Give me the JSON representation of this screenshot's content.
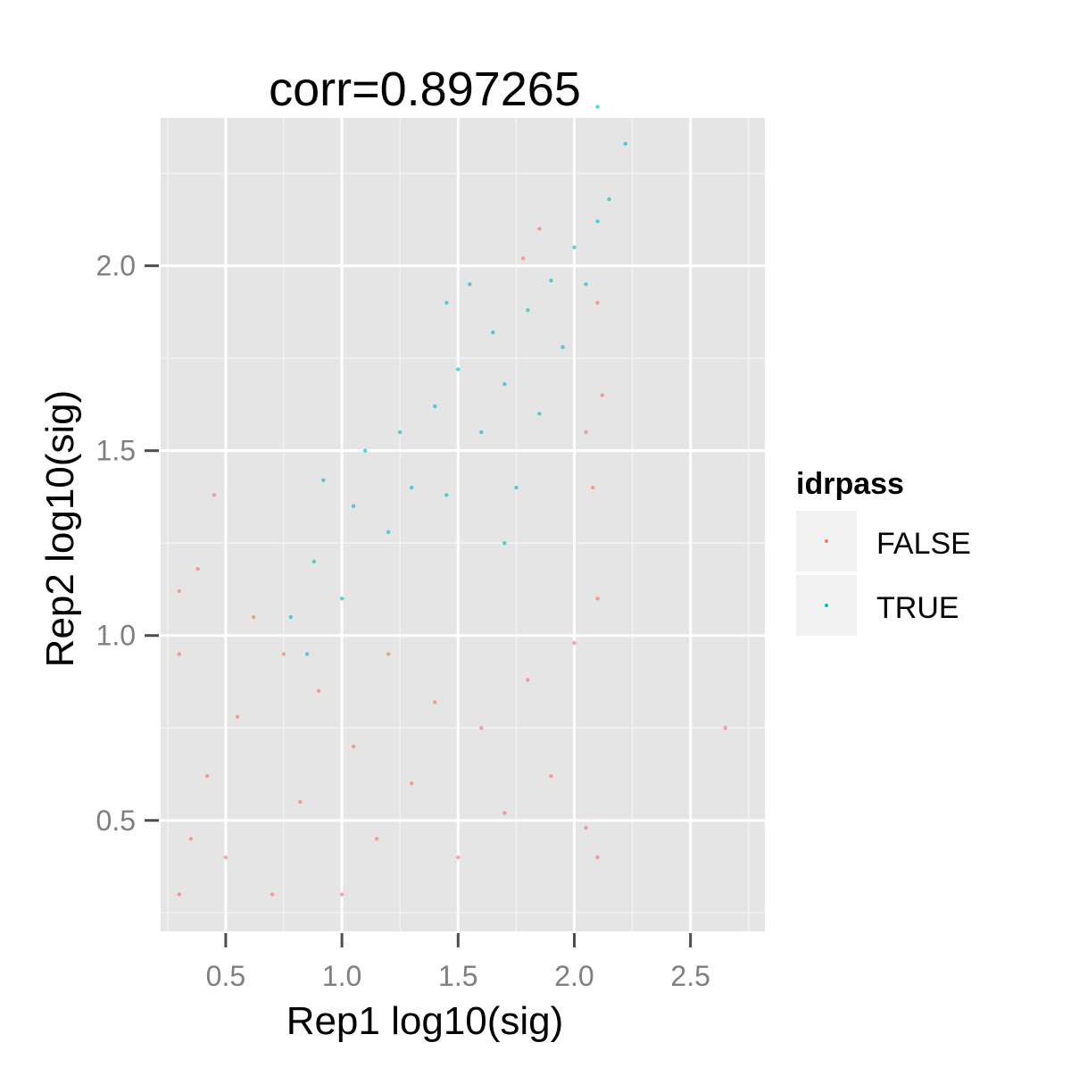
{
  "chart_data": {
    "type": "scatter",
    "title": "corr=0.897265",
    "xlabel": "Rep1 log10(sig)",
    "ylabel": "Rep2 log10(sig)",
    "xlim": [
      0.22,
      2.82
    ],
    "ylim": [
      0.2,
      2.4
    ],
    "x_ticks": [
      {
        "value": 0.5,
        "label": "0.5"
      },
      {
        "value": 1.0,
        "label": "1.0"
      },
      {
        "value": 1.5,
        "label": "1.5"
      },
      {
        "value": 2.0,
        "label": "2.0"
      },
      {
        "value": 2.5,
        "label": "2.5"
      }
    ],
    "y_ticks": [
      {
        "value": 0.5,
        "label": "0.5"
      },
      {
        "value": 1.0,
        "label": "1.0"
      },
      {
        "value": 1.5,
        "label": "1.5"
      },
      {
        "value": 2.0,
        "label": "2.0"
      }
    ],
    "grid": true,
    "background": "#e5e5e5",
    "legend": {
      "title": "idrpass",
      "position": "right"
    },
    "series": [
      {
        "name": "FALSE",
        "color": "#f8766d",
        "points": [
          [
            0.3,
            0.3
          ],
          [
            0.35,
            0.45
          ],
          [
            0.42,
            0.62
          ],
          [
            0.3,
            0.95
          ],
          [
            0.38,
            1.18
          ],
          [
            0.5,
            0.4
          ],
          [
            0.55,
            0.78
          ],
          [
            0.62,
            1.05
          ],
          [
            0.7,
            0.3
          ],
          [
            0.75,
            0.95
          ],
          [
            0.82,
            0.55
          ],
          [
            0.9,
            0.85
          ],
          [
            1.0,
            0.3
          ],
          [
            1.05,
            0.7
          ],
          [
            1.15,
            0.45
          ],
          [
            1.2,
            0.95
          ],
          [
            1.3,
            0.6
          ],
          [
            1.4,
            0.82
          ],
          [
            1.5,
            0.4
          ],
          [
            1.6,
            0.75
          ],
          [
            1.7,
            0.52
          ],
          [
            1.8,
            0.88
          ],
          [
            1.9,
            0.62
          ],
          [
            2.0,
            0.98
          ],
          [
            2.05,
            0.48
          ],
          [
            2.1,
            1.1
          ],
          [
            2.08,
            1.4
          ],
          [
            2.12,
            1.65
          ],
          [
            2.1,
            1.9
          ],
          [
            2.05,
            1.55
          ],
          [
            1.78,
            2.02
          ],
          [
            1.85,
            2.1
          ],
          [
            0.45,
            1.38
          ],
          [
            0.3,
            1.12
          ],
          [
            2.65,
            0.75
          ],
          [
            2.1,
            0.4
          ]
        ]
      },
      {
        "name": "TRUE",
        "color": "#00bfc4",
        "points": [
          [
            0.85,
            0.95
          ],
          [
            0.88,
            1.2
          ],
          [
            0.92,
            1.42
          ],
          [
            1.0,
            1.1
          ],
          [
            1.05,
            1.35
          ],
          [
            1.1,
            1.5
          ],
          [
            1.2,
            1.28
          ],
          [
            1.25,
            1.55
          ],
          [
            1.3,
            1.4
          ],
          [
            1.4,
            1.62
          ],
          [
            1.45,
            1.38
          ],
          [
            1.5,
            1.72
          ],
          [
            1.6,
            1.55
          ],
          [
            1.65,
            1.82
          ],
          [
            1.7,
            1.68
          ],
          [
            1.75,
            1.4
          ],
          [
            1.8,
            1.88
          ],
          [
            1.85,
            1.6
          ],
          [
            1.9,
            1.96
          ],
          [
            1.95,
            1.78
          ],
          [
            2.0,
            2.05
          ],
          [
            2.05,
            1.95
          ],
          [
            2.1,
            2.12
          ],
          [
            2.15,
            2.18
          ],
          [
            1.55,
            1.95
          ],
          [
            1.45,
            1.9
          ],
          [
            2.1,
            2.43
          ],
          [
            2.22,
            2.33
          ],
          [
            0.78,
            1.05
          ],
          [
            1.7,
            1.25
          ]
        ]
      }
    ]
  }
}
